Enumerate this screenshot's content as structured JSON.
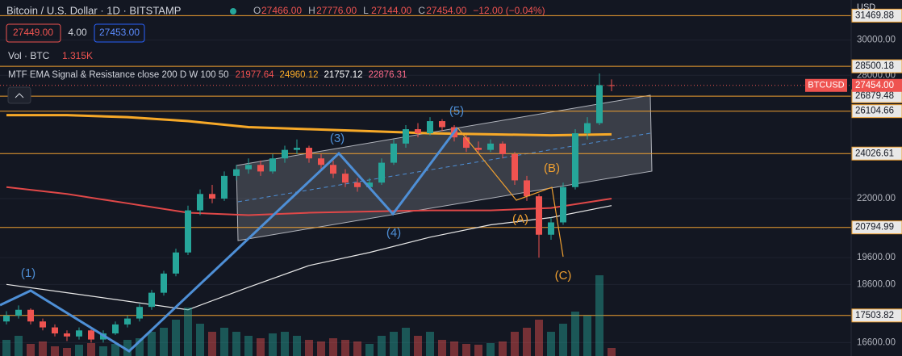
{
  "header": {
    "title": "Bitcoin / U.S. Dollar · 1D · BITSTAMP",
    "ohlc": [
      {
        "label": "O",
        "value": "27466.00"
      },
      {
        "label": "H",
        "value": "27776.00"
      },
      {
        "label": "L",
        "value": "27144.00"
      },
      {
        "label": "C",
        "value": "27454.00"
      }
    ],
    "change": "−12.00 (−0.04%)",
    "sell": "27449.00",
    "spread": "4.00",
    "buy": "27453.00",
    "volume_label": "Vol · BTC",
    "volume_value": "1.315K",
    "indicator_label": "MTF EMA Signal & Resistance close 200 D W 100 50",
    "indicator_values": [
      {
        "text": "21977.64",
        "color": "#f05050"
      },
      {
        "text": "24960.12",
        "color": "#f7a928"
      },
      {
        "text": "21757.12",
        "color": "#ffffff"
      },
      {
        "text": "22876.31",
        "color": "#ff6b8a"
      }
    ]
  },
  "chart": {
    "currency": "USD",
    "symbol": "BTCUSD",
    "last": {
      "value": 27454,
      "label": "27454.00"
    },
    "ylim": [
      16170,
      32445
    ],
    "log": true,
    "yticks": [
      {
        "value": 30000,
        "label": "30000.00"
      },
      {
        "value": 28000,
        "label": "28000.00"
      },
      {
        "value": 22000,
        "label": "22000.00"
      },
      {
        "value": 19600,
        "label": "19600.00"
      },
      {
        "value": 18600,
        "label": "18600.00"
      },
      {
        "value": 16600,
        "label": "16600.00"
      }
    ],
    "levels": [
      {
        "value": 31469.88,
        "label": "31469.88"
      },
      {
        "value": 28500.18,
        "label": "28500.18"
      },
      {
        "value": 26879.48,
        "label": "26879.48"
      },
      {
        "value": 26104.66,
        "label": "26104.66"
      },
      {
        "value": 24026.61,
        "label": "24026.61"
      },
      {
        "value": 20794.99,
        "label": "20794.99"
      },
      {
        "value": 17503.82,
        "label": "17503.82"
      }
    ],
    "candles": [
      [
        17300,
        17650,
        17200,
        17500
      ],
      [
        17500,
        17850,
        17400,
        17700
      ],
      [
        17700,
        17750,
        17200,
        17300
      ],
      [
        17300,
        17400,
        17000,
        17100
      ],
      [
        17100,
        17200,
        16800,
        16900
      ],
      [
        16900,
        17000,
        16650,
        16800
      ],
      [
        16800,
        17100,
        16700,
        17000
      ],
      [
        17000,
        17050,
        16600,
        16700
      ],
      [
        16700,
        17000,
        16600,
        16900
      ],
      [
        16900,
        17300,
        16850,
        17200
      ],
      [
        17200,
        17500,
        17100,
        17400
      ],
      [
        17400,
        17900,
        17300,
        17800
      ],
      [
        17800,
        18400,
        17700,
        18300
      ],
      [
        18300,
        19100,
        18200,
        19000
      ],
      [
        19000,
        19950,
        18900,
        19800
      ],
      [
        19800,
        21700,
        19700,
        21500
      ],
      [
        21500,
        22400,
        21300,
        22200
      ],
      [
        22200,
        22600,
        21800,
        22000
      ],
      [
        22000,
        23200,
        21900,
        23000
      ],
      [
        23000,
        23500,
        22800,
        23300
      ],
      [
        23300,
        23800,
        23100,
        23500
      ],
      [
        23500,
        23700,
        23000,
        23200
      ],
      [
        23200,
        24000,
        23100,
        23800
      ],
      [
        23800,
        24400,
        23600,
        24200
      ],
      [
        24200,
        24700,
        24000,
        24300
      ],
      [
        24300,
        24400,
        23600,
        23800
      ],
      [
        23800,
        24000,
        23300,
        23500
      ],
      [
        23500,
        23700,
        22900,
        23100
      ],
      [
        23100,
        23300,
        22500,
        22700
      ],
      [
        22700,
        22900,
        22300,
        22500
      ],
      [
        22500,
        22900,
        22400,
        22700
      ],
      [
        22700,
        23800,
        22600,
        23600
      ],
      [
        23600,
        24700,
        23500,
        24500
      ],
      [
        24500,
        25400,
        24300,
        25200
      ],
      [
        25200,
        25500,
        24800,
        25000
      ],
      [
        25000,
        25800,
        24900,
        25600
      ],
      [
        25600,
        25700,
        25100,
        25300
      ],
      [
        25300,
        25400,
        24600,
        24800
      ],
      [
        24800,
        24900,
        24100,
        24300
      ],
      [
        24300,
        24600,
        24000,
        24200
      ],
      [
        24200,
        24700,
        24100,
        24500
      ],
      [
        24500,
        24600,
        23800,
        24000
      ],
      [
        24000,
        24100,
        22600,
        22800
      ],
      [
        22800,
        23000,
        21900,
        22100
      ],
      [
        22100,
        22200,
        19600,
        20500
      ],
      [
        20500,
        21200,
        20300,
        21000
      ],
      [
        21000,
        22700,
        20900,
        22500
      ],
      [
        22500,
        25200,
        22400,
        25000
      ],
      [
        25000,
        25800,
        24700,
        25500
      ],
      [
        25500,
        28100,
        25400,
        27466
      ],
      [
        27466,
        27776,
        27144,
        27454
      ]
    ],
    "volume": [
      20,
      25,
      15,
      18,
      12,
      10,
      14,
      16,
      12,
      15,
      20,
      22,
      30,
      35,
      45,
      60,
      40,
      30,
      35,
      30,
      25,
      22,
      28,
      30,
      25,
      20,
      18,
      22,
      20,
      18,
      15,
      25,
      30,
      35,
      25,
      30,
      20,
      18,
      15,
      14,
      16,
      18,
      30,
      35,
      45,
      30,
      40,
      55,
      50,
      100,
      10
    ],
    "ema_lines": [
      {
        "color": "#f7a928",
        "width": 3,
        "values": [
          25900,
          25900,
          25800,
          25600,
          25300,
          25200,
          25100,
          25000,
          24950,
          24900,
          24950
        ]
      },
      {
        "color": "#e04848",
        "width": 2,
        "values": [
          22500,
          22200,
          21800,
          21400,
          21300,
          21400,
          21450,
          21500,
          21500,
          21600,
          22000
        ]
      },
      {
        "color": "#e8e8e8",
        "width": 1.2,
        "values": [
          18600,
          18300,
          18000,
          17700,
          18500,
          19300,
          19800,
          20400,
          20900,
          21200,
          21700
        ]
      }
    ],
    "waves": [
      {
        "label": "(1)",
        "x": 35,
        "y": 339,
        "color": "#4e8fd6"
      },
      {
        "label": "(3)",
        "x": 418,
        "y": 172,
        "color": "#4e8fd6"
      },
      {
        "label": "(4)",
        "x": 488,
        "y": 289,
        "color": "#4e8fd6"
      },
      {
        "label": "(5)",
        "x": 566,
        "y": 138,
        "color": "#4e8fd6"
      },
      {
        "label": "(A)",
        "x": 645,
        "y": 272,
        "color": "#f0a030"
      },
      {
        "label": "(B)",
        "x": 684,
        "y": 209,
        "color": "#f0a030"
      },
      {
        "label": "(C)",
        "x": 698,
        "y": 342,
        "color": "#f0a030"
      }
    ]
  }
}
